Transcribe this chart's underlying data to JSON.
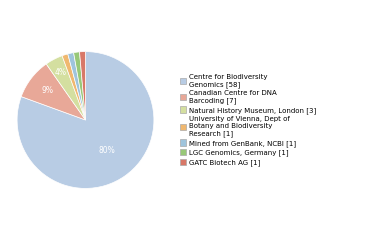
{
  "labels": [
    "Centre for Biodiversity\nGenomics [58]",
    "Canadian Centre for DNA\nBarcoding [7]",
    "Natural History Museum, London [3]",
    "University of Vienna, Dept of\nBotany and Biodiversity\nResearch [1]",
    "Mined from GenBank, NCBI [1]",
    "LGC Genomics, Germany [1]",
    "GATC Biotech AG [1]"
  ],
  "values": [
    58,
    7,
    3,
    1,
    1,
    1,
    1
  ],
  "colors": [
    "#b8cce4",
    "#e8a898",
    "#d4dfa0",
    "#f0b870",
    "#9fc4dc",
    "#98c878",
    "#d87868"
  ],
  "pct_labels": [
    "80%",
    "9%",
    "4%",
    "1%",
    "1%",
    "1%",
    "1%"
  ],
  "background_color": "#ffffff"
}
